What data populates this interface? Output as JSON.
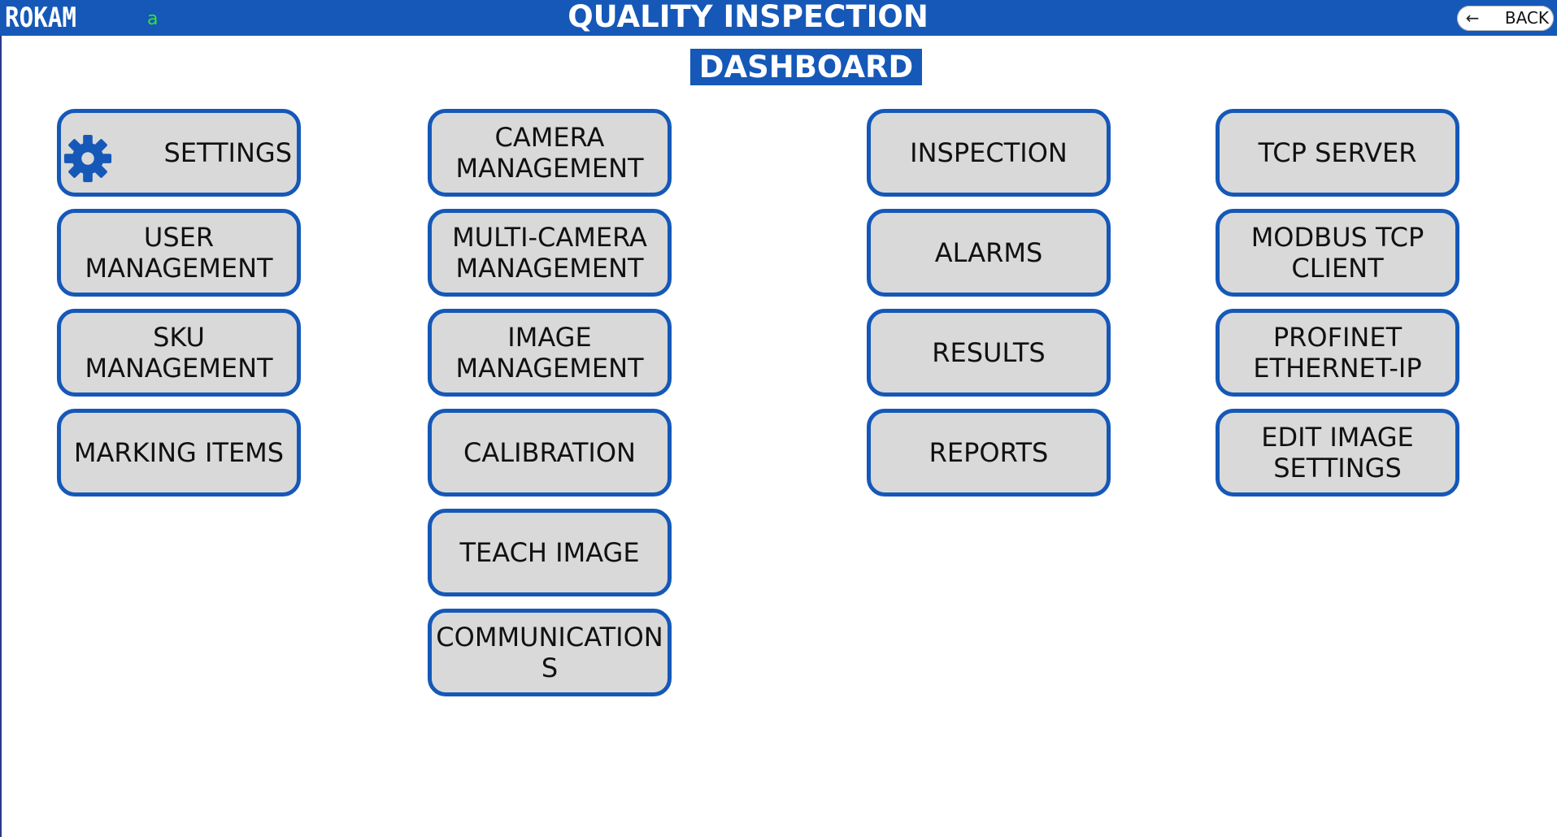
{
  "header": {
    "brand": "ROKAM",
    "user": "a",
    "title": "QUALITY INSPECTION",
    "back_label": "BACK",
    "back_icon": "arrow-left-icon"
  },
  "page_title": "DASHBOARD",
  "colors": {
    "primary_blue": "#1558b8",
    "tile_fill": "#d9d9d9",
    "user_text": "#35e235"
  },
  "tiles": {
    "settings": "SETTINGS",
    "settings_icon": "gear-icon",
    "user_management": "USER MANAGEMENT",
    "sku_management": "SKU MANAGEMENT",
    "marking_items": "MARKING ITEMS",
    "camera_management": "CAMERA MANAGEMENT",
    "multi_camera_management": "MULTI-CAMERA MANAGEMENT",
    "image_management": "IMAGE MANAGEMENT",
    "calibration": "CALIBRATION",
    "teach_image": "TEACH IMAGE",
    "communications": "COMMUNICATIONS",
    "inspection": "INSPECTION",
    "alarms": "ALARMS",
    "results": "RESULTS",
    "reports": "REPORTS",
    "tcp_server": "TCP SERVER",
    "modbus_tcp_client": "MODBUS TCP CLIENT",
    "profinet_ethernet_ip": "PROFINET ETHERNET-IP",
    "edit_image_settings": "EDIT IMAGE SETTINGS"
  }
}
